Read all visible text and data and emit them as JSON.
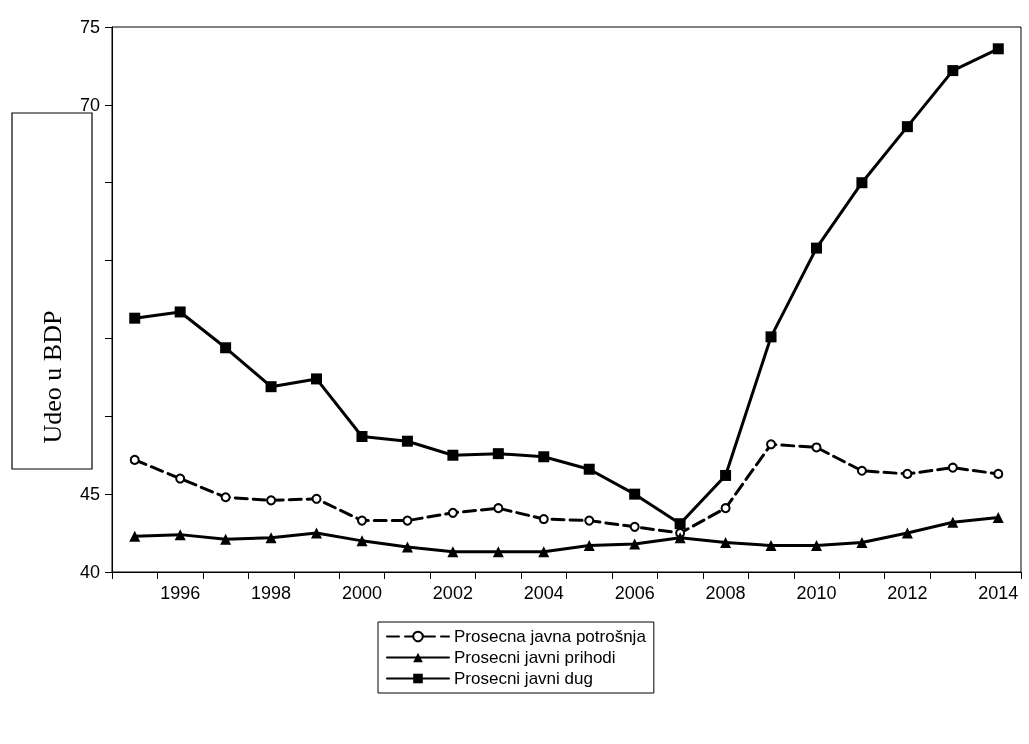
{
  "chart_data": {
    "type": "line",
    "ylabel": "Udeo u BDP",
    "categories": [
      null,
      "1996",
      null,
      "1998",
      null,
      "2000",
      null,
      "2002",
      null,
      "2004",
      null,
      "2006",
      null,
      "2008",
      null,
      "2010",
      null,
      "2012",
      null,
      "2014"
    ],
    "ylim": [
      40,
      75
    ],
    "yticks": [
      40,
      45,
      {
        "value": 50,
        "label": null
      },
      {
        "value": 55,
        "label": null
      },
      {
        "value": 60,
        "label": null
      },
      {
        "value": 65,
        "label": null
      },
      70,
      75
    ],
    "series": [
      {
        "name": "Prosecna javna potrošnja",
        "color": "#000000",
        "marker": "circle",
        "line_style": "dashed",
        "values": [
          47.2,
          46.0,
          44.8,
          44.6,
          44.7,
          43.3,
          43.3,
          43.8,
          44.1,
          43.4,
          43.3,
          42.9,
          42.5,
          44.1,
          48.2,
          48.0,
          46.5,
          46.3,
          46.7,
          46.3
        ]
      },
      {
        "name": "Prosecni javni prihodi",
        "color": "#000000",
        "marker": "triangle",
        "line_style": "solid",
        "values": [
          42.3,
          42.4,
          42.1,
          42.2,
          42.5,
          42.0,
          41.6,
          41.3,
          41.3,
          41.3,
          41.7,
          41.8,
          42.2,
          41.9,
          41.7,
          41.7,
          41.9,
          42.5,
          43.2,
          43.5
        ]
      },
      {
        "name": "Prosecni javni dug",
        "color": "#000000",
        "marker": "square",
        "line_style": "solid",
        "values": [
          56.3,
          56.7,
          54.4,
          51.9,
          52.4,
          48.7,
          48.4,
          47.5,
          47.6,
          47.4,
          46.6,
          45.0,
          43.1,
          46.2,
          55.1,
          60.8,
          65.0,
          68.6,
          72.2,
          73.6
        ]
      }
    ],
    "legend": "bottom",
    "grid": false
  }
}
